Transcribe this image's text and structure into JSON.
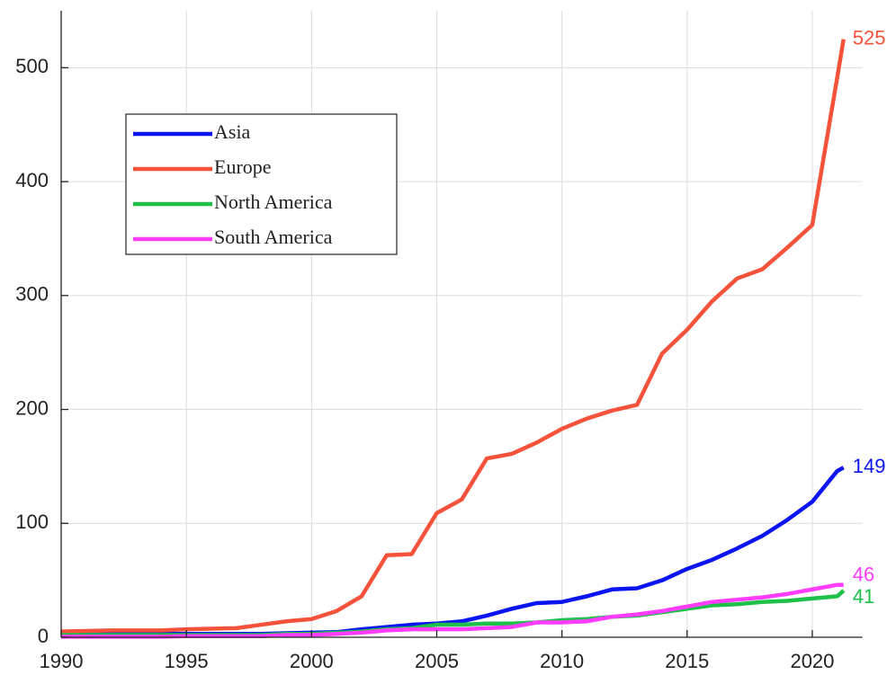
{
  "chart_data": {
    "type": "line",
    "x": [
      1990,
      1991,
      1992,
      1993,
      1994,
      1995,
      1996,
      1997,
      1998,
      1999,
      2000,
      2001,
      2002,
      2003,
      2004,
      2005,
      2006,
      2007,
      2008,
      2009,
      2010,
      2011,
      2012,
      2013,
      2014,
      2015,
      2016,
      2017,
      2018,
      2019,
      2020,
      2021,
      2021.25
    ],
    "series": [
      {
        "name": "Asia",
        "color": "#0a14f0",
        "values": [
          3,
          3,
          3,
          3,
          3,
          3,
          3,
          3,
          3,
          3.5,
          4,
          4.5,
          7,
          9,
          11,
          12,
          14,
          19,
          25,
          30,
          31,
          36,
          42,
          43,
          50,
          60,
          68,
          78,
          89,
          103,
          119,
          146,
          149
        ]
      },
      {
        "name": "Europe",
        "color": "#f4523a",
        "values": [
          5,
          5.5,
          6,
          6,
          6,
          7,
          7.5,
          8,
          11,
          14,
          16,
          23,
          36,
          72,
          73,
          109,
          121,
          157,
          161,
          171,
          183,
          192,
          199,
          204,
          249,
          270,
          295,
          315,
          323,
          342,
          362,
          492,
          525
        ]
      },
      {
        "name": "North America",
        "color": "#1ec04a",
        "values": [
          2,
          2,
          2,
          2,
          2,
          2,
          2,
          2,
          2,
          3,
          3,
          4,
          5,
          7,
          8,
          11,
          11,
          12,
          12,
          13,
          15,
          16,
          18,
          19,
          22,
          25,
          28,
          29,
          31,
          32,
          34,
          36,
          41
        ]
      },
      {
        "name": "South America",
        "color": "#ff3cff",
        "values": [
          0.5,
          0.5,
          0.5,
          0.5,
          0.5,
          1,
          1,
          1,
          1,
          2,
          2,
          3,
          4,
          6,
          7,
          7,
          7,
          8,
          9,
          13,
          13,
          14,
          18,
          20,
          23,
          27,
          31,
          33,
          35,
          38,
          42,
          46,
          46
        ]
      }
    ],
    "xlim": [
      1990,
      2022
    ],
    "xticks": [
      1990,
      1995,
      2000,
      2005,
      2010,
      2015,
      2020
    ],
    "ylim": [
      0,
      550
    ],
    "yticks": [
      0,
      100,
      200,
      300,
      400,
      500
    ],
    "grid": true
  }
}
